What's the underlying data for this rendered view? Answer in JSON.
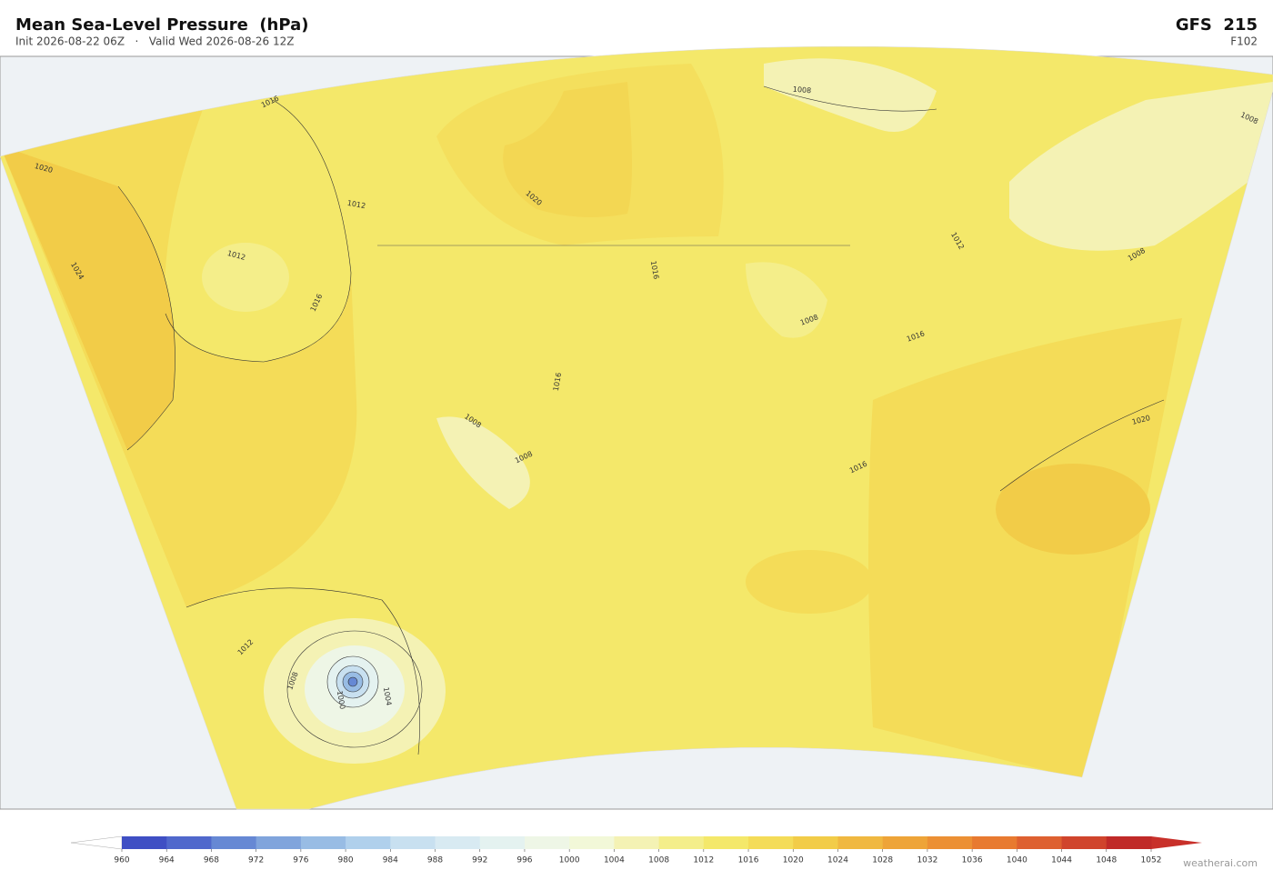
{
  "header": {
    "title": "Mean Sea-Level Pressure  (hPa)",
    "subtitle": "Init 2026-08-22 06Z   ·   Valid Wed 2026-08-26 12Z",
    "model": "GFS  215",
    "forecast_hour": "F102"
  },
  "map": {
    "contour_labels": [
      1016,
      1020,
      1012,
      1012,
      1024,
      1016,
      1020,
      1008,
      1008,
      1012,
      1016,
      1008,
      1008,
      1016,
      1016,
      1008,
      1008,
      1020,
      1016,
      1012,
      1008,
      1004,
      1000
    ]
  },
  "colorbar": {
    "ticks": [
      960,
      964,
      968,
      972,
      976,
      980,
      984,
      988,
      992,
      996,
      1000,
      1004,
      1008,
      1012,
      1016,
      1020,
      1024,
      1028,
      1032,
      1036,
      1040,
      1044,
      1048,
      1052
    ],
    "colors": [
      "#3f4fc4",
      "#5068cc",
      "#6688d4",
      "#80a4dc",
      "#98bce4",
      "#b0d0ec",
      "#c8e0f0",
      "#d8eaf2",
      "#e4f2f0",
      "#eef6e6",
      "#f2f8d8",
      "#f4f2b4",
      "#f4ee8a",
      "#f4e86a",
      "#f4dc58",
      "#f2cc48",
      "#f0b840",
      "#eea438",
      "#ec9034",
      "#e87a30",
      "#de6030",
      "#d0442c",
      "#c02a28"
    ],
    "extend_colors": [
      "#ffffff",
      "#c8302a"
    ]
  },
  "credit": "weatherai.com"
}
